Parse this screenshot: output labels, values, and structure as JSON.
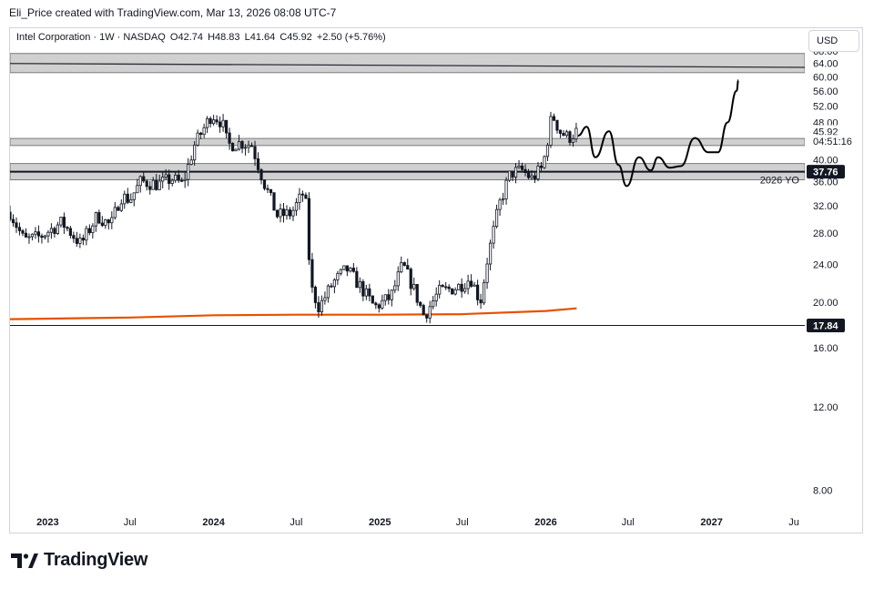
{
  "credit": "Eli_Price created with TradingView.com, Mar 13, 2026 08:08 UTC-7",
  "legend": {
    "symbol": "Intel Corporation · 1W · NASDAQ",
    "open": "O42.74",
    "high": "H48.83",
    "low": "L41.64",
    "close": "C45.92",
    "change": "+2.50 (+5.76%)"
  },
  "currency_button": "USD",
  "brand": "TradingView",
  "chart_data": {
    "type": "candlestick",
    "symbol": "Intel Corporation",
    "interval": "1W",
    "exchange": "NASDAQ",
    "y_scale": "log",
    "ylim": [
      7.2,
      76
    ],
    "xlim": [
      "2022-10-10",
      "2027-07-25"
    ],
    "y_ticks": [
      "72.00",
      "68.00",
      "64.00",
      "60.00",
      "56.00",
      "52.00",
      "48.00",
      "44.00",
      "40.00",
      "36.00",
      "32.00",
      "28.00",
      "24.00",
      "20.00",
      "16.00",
      "12.00",
      "8.00"
    ],
    "x_ticks": [
      {
        "label": "2023",
        "date": "2023-01-01"
      },
      {
        "label": "Jul",
        "date": "2023-07-01"
      },
      {
        "label": "2024",
        "date": "2024-01-01"
      },
      {
        "label": "Jul",
        "date": "2024-07-01"
      },
      {
        "label": "2025",
        "date": "2025-01-01"
      },
      {
        "label": "Jul",
        "date": "2025-07-01"
      },
      {
        "label": "2026",
        "date": "2026-01-01"
      },
      {
        "label": "Jul",
        "date": "2026-07-01"
      },
      {
        "label": "2027",
        "date": "2027-01-01"
      },
      {
        "label": "Ju",
        "date": "2027-07-01"
      }
    ],
    "price_labels": [
      {
        "text": "45.92",
        "value": 45.92,
        "style": "plain"
      },
      {
        "text": "04:51:16",
        "value": 43.8,
        "style": "plain"
      },
      {
        "text": "37.76",
        "value": 37.76,
        "style": "dark"
      },
      {
        "text": "17.84",
        "value": 17.84,
        "style": "dark"
      }
    ],
    "zones": [
      {
        "from": 61.2,
        "to": 67.2
      },
      {
        "from": 42.9,
        "to": 44.4
      },
      {
        "from": 36.3,
        "to": 39.3
      }
    ],
    "horizontal_lines": [
      {
        "value": 37.76,
        "label": "2026 YO"
      },
      {
        "value": 17.84,
        "label": ""
      }
    ],
    "trendline": {
      "from": {
        "date": "2022-10-10",
        "value": 64.0
      },
      "to": {
        "date": "2027-07-25",
        "value": 62.8
      }
    },
    "moving_average": [
      {
        "date": "2022-10-10",
        "value": 18.4
      },
      {
        "date": "2023-07-01",
        "value": 18.55
      },
      {
        "date": "2024-01-01",
        "value": 18.75
      },
      {
        "date": "2024-07-01",
        "value": 18.8
      },
      {
        "date": "2025-01-01",
        "value": 18.8
      },
      {
        "date": "2025-07-01",
        "value": 18.85
      },
      {
        "date": "2026-01-01",
        "value": 19.15
      },
      {
        "date": "2026-03-10",
        "value": 19.4
      }
    ],
    "price_path": [
      {
        "date": "2022-10-10",
        "value": 31.0
      },
      {
        "date": "2022-11-10",
        "value": 27.0
      },
      {
        "date": "2022-12-15",
        "value": 27.5
      },
      {
        "date": "2023-02-01",
        "value": 29.5
      },
      {
        "date": "2023-03-15",
        "value": 26.5
      },
      {
        "date": "2023-04-20",
        "value": 30.5
      },
      {
        "date": "2023-05-20",
        "value": 29.0
      },
      {
        "date": "2023-06-10",
        "value": 33.5
      },
      {
        "date": "2023-07-01",
        "value": 33.0
      },
      {
        "date": "2023-07-25",
        "value": 36.0
      },
      {
        "date": "2023-09-01",
        "value": 35.5
      },
      {
        "date": "2023-10-01",
        "value": 36.5
      },
      {
        "date": "2023-10-25",
        "value": 35.5
      },
      {
        "date": "2023-11-20",
        "value": 43.0
      },
      {
        "date": "2023-12-28",
        "value": 50.0
      },
      {
        "date": "2024-01-20",
        "value": 48.0
      },
      {
        "date": "2024-02-01",
        "value": 43.0
      },
      {
        "date": "2024-03-01",
        "value": 43.5
      },
      {
        "date": "2024-03-25",
        "value": 43.0
      },
      {
        "date": "2024-04-20",
        "value": 36.0
      },
      {
        "date": "2024-05-20",
        "value": 30.5
      },
      {
        "date": "2024-06-20",
        "value": 30.8
      },
      {
        "date": "2024-07-20",
        "value": 34.5
      },
      {
        "date": "2024-08-02",
        "value": 21.5
      },
      {
        "date": "2024-08-20",
        "value": 19.5
      },
      {
        "date": "2024-09-20",
        "value": 22.0
      },
      {
        "date": "2024-10-20",
        "value": 23.5
      },
      {
        "date": "2024-11-20",
        "value": 21.5
      },
      {
        "date": "2024-12-20",
        "value": 19.5
      },
      {
        "date": "2025-01-25",
        "value": 20.5
      },
      {
        "date": "2025-02-20",
        "value": 24.0
      },
      {
        "date": "2025-03-15",
        "value": 21.5
      },
      {
        "date": "2025-04-08",
        "value": 18.7
      },
      {
        "date": "2025-05-10",
        "value": 21.0
      },
      {
        "date": "2025-06-20",
        "value": 21.5
      },
      {
        "date": "2025-07-20",
        "value": 22.5
      },
      {
        "date": "2025-08-10",
        "value": 20.0
      },
      {
        "date": "2025-08-25",
        "value": 24.5
      },
      {
        "date": "2025-09-20",
        "value": 32.0
      },
      {
        "date": "2025-10-15",
        "value": 37.5
      },
      {
        "date": "2025-11-10",
        "value": 38.0
      },
      {
        "date": "2025-12-01",
        "value": 36.5
      },
      {
        "date": "2025-12-25",
        "value": 38.5
      },
      {
        "date": "2026-01-15",
        "value": 50.0
      },
      {
        "date": "2026-02-01",
        "value": 46.0
      },
      {
        "date": "2026-02-20",
        "value": 44.5
      },
      {
        "date": "2026-03-10",
        "value": 45.92
      }
    ],
    "projection": [
      {
        "date": "2026-03-13",
        "value": 45.0
      },
      {
        "date": "2026-04-01",
        "value": 47.0
      },
      {
        "date": "2026-04-20",
        "value": 40.5
      },
      {
        "date": "2026-05-20",
        "value": 46.0
      },
      {
        "date": "2026-06-10",
        "value": 39.0
      },
      {
        "date": "2026-06-28",
        "value": 35.2
      },
      {
        "date": "2026-07-25",
        "value": 40.5
      },
      {
        "date": "2026-08-20",
        "value": 38.0
      },
      {
        "date": "2026-09-05",
        "value": 40.5
      },
      {
        "date": "2026-10-01",
        "value": 38.5
      },
      {
        "date": "2026-10-25",
        "value": 38.8
      },
      {
        "date": "2026-11-25",
        "value": 44.5
      },
      {
        "date": "2026-12-25",
        "value": 41.5
      },
      {
        "date": "2027-01-15",
        "value": 41.5
      },
      {
        "date": "2027-02-05",
        "value": 48.0
      },
      {
        "date": "2027-02-25",
        "value": 56.0
      },
      {
        "date": "2027-03-01",
        "value": 59.0
      }
    ],
    "colors": {
      "candles": "#131722",
      "zone_fill": "#c8c8c8",
      "moving_average": "#e65100",
      "projection": "#000000",
      "axis_text": "#131722",
      "price_label_dark": "#131722"
    }
  }
}
